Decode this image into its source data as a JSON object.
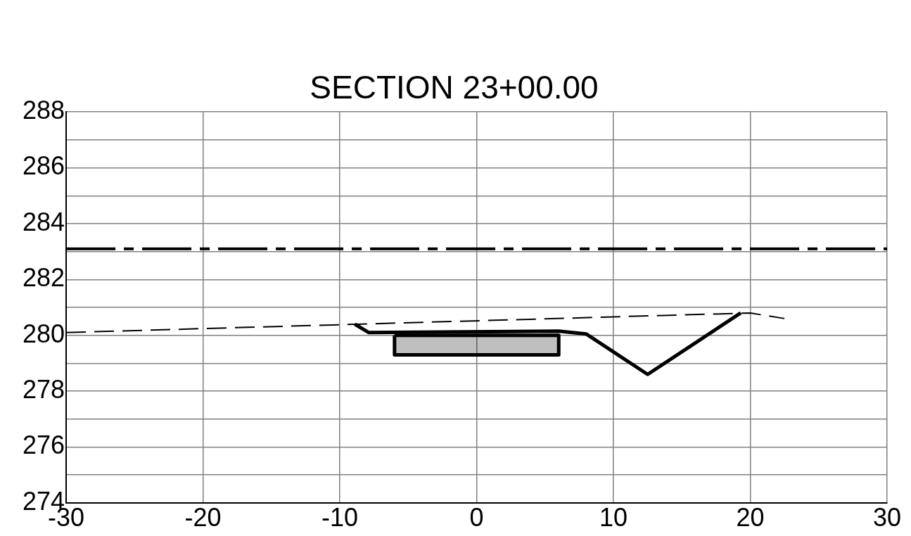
{
  "chart_data": {
    "type": "line",
    "title": "SECTION 23+00.00",
    "marker": "none",
    "grid": true,
    "legend": false,
    "xlim": [
      -30,
      30
    ],
    "xticks": [
      -30,
      -20,
      -10,
      0,
      10,
      20,
      30
    ],
    "ylim": [
      274,
      288
    ],
    "yticks": [
      274,
      {
        "value": 275,
        "label": null
      },
      276,
      {
        "value": 277,
        "label": null
      },
      278,
      {
        "value": 279,
        "label": null
      },
      280,
      {
        "value": 281,
        "label": null
      },
      282,
      {
        "value": 283,
        "label": null
      },
      284,
      {
        "value": 285,
        "label": null
      },
      286,
      {
        "value": 287,
        "label": null
      },
      288
    ],
    "series": [
      {
        "color": "#000000",
        "line_style": "dashed",
        "x": [
          -30,
          20,
          22.5
        ],
        "values": [
          280.1,
          280.8,
          280.6
        ]
      },
      {
        "color": "#000000",
        "line_style": "solid",
        "x": [
          -8.9,
          -7.9,
          6,
          8,
          12.5,
          19.3
        ],
        "values": [
          280.4,
          280.1,
          280.15,
          280.05,
          278.6,
          280.8
        ]
      },
      {
        "type": "area",
        "color": "#000000",
        "line_style": "solid",
        "x": [
          -6,
          6,
          6,
          -6,
          -6
        ],
        "values": [
          280,
          280,
          279.3,
          279.3,
          280
        ]
      }
    ],
    "ref_lines": [
      {
        "axis": "y",
        "value": 283.1,
        "color": "#000000",
        "line_style": "dashed"
      }
    ]
  }
}
